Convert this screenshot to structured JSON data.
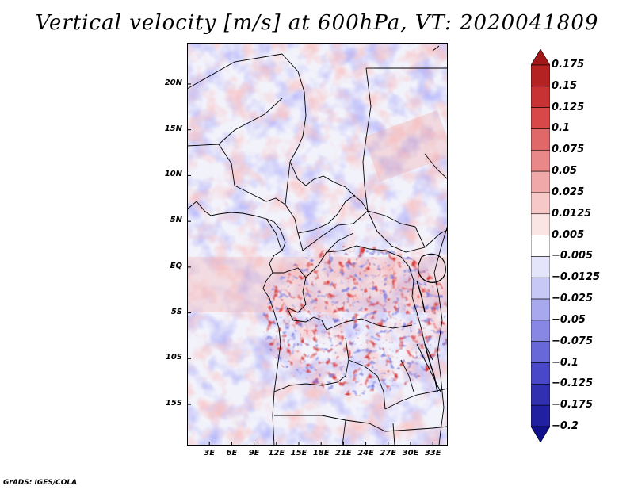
{
  "title": "Vertical velocity [m/s] at 600hPa, VT: 2020041809",
  "footer": "GrADS: IGES/COLA",
  "map": {
    "lat_labels": [
      "20N",
      "15N",
      "10N",
      "5N",
      "EQ",
      "5S",
      "10S",
      "15S"
    ],
    "lat_values": [
      20,
      15,
      10,
      5,
      0,
      -5,
      -10,
      -15
    ],
    "lon_labels": [
      "3E",
      "6E",
      "9E",
      "12E",
      "15E",
      "18E",
      "21E",
      "24E",
      "27E",
      "30E",
      "33E"
    ],
    "lon_values": [
      3,
      6,
      9,
      12,
      15,
      18,
      21,
      24,
      27,
      30,
      33
    ],
    "lat_range": [
      -19.5,
      24.5
    ],
    "lon_range": [
      0,
      35
    ],
    "field": "Vertical velocity at 600hPa"
  },
  "colorbar": {
    "labels": [
      "0.175",
      "0.15",
      "0.125",
      "0.1",
      "0.075",
      "0.05",
      "0.025",
      "0.0125",
      "0.005",
      "−0.005",
      "−0.0125",
      "−0.025",
      "−0.05",
      "−0.075",
      "−0.1",
      "−0.125",
      "−0.175",
      "−0.2"
    ],
    "colors": [
      "#a01818",
      "#b52222",
      "#c83232",
      "#d84848",
      "#e06868",
      "#e88888",
      "#f0a8a8",
      "#f6c8c8",
      "#fbe4e4",
      "#ffffff",
      "#e4e4fb",
      "#c8c8f6",
      "#a8a8ee",
      "#8888e4",
      "#6868d8",
      "#4848c8",
      "#3030b0",
      "#2020a0",
      "#10108a"
    ]
  }
}
